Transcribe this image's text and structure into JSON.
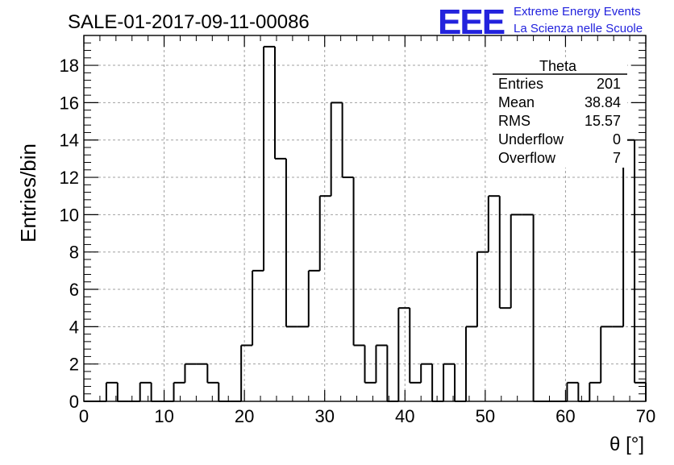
{
  "header": {
    "title": "SALE-01-2017-09-11-00086",
    "logo_text": "EEE",
    "project_line1": "Extreme Energy Events",
    "project_line2": "La Scienza nelle Scuole"
  },
  "stats_box": {
    "name": "Theta",
    "rows": [
      {
        "label": "Entries",
        "value": "201"
      },
      {
        "label": "Mean",
        "value": "38.84"
      },
      {
        "label": "RMS",
        "value": "15.57"
      },
      {
        "label": "Underflow",
        "value": "0"
      },
      {
        "label": "Overflow",
        "value": "7"
      }
    ]
  },
  "colors": {
    "logo": "#2222dd",
    "line": "#000000",
    "grid": "#a0a0a0"
  },
  "chart_data": {
    "type": "bar",
    "style": "step-histogram",
    "title": "SALE-01-2017-09-11-00086",
    "xlabel": "θ [°]",
    "ylabel": "Entries/bin",
    "xlim": [
      0,
      70
    ],
    "ylim": [
      0,
      19.6
    ],
    "grid": true,
    "bin_width": 1.4,
    "bin_edges_start": 0,
    "values": [
      0,
      0,
      1,
      0,
      0,
      1,
      0,
      0,
      1,
      2,
      2,
      1,
      0,
      0,
      3,
      7,
      19,
      13,
      4,
      4,
      7,
      11,
      16,
      12,
      3,
      1,
      3,
      0,
      5,
      1,
      2,
      0,
      2,
      0,
      4,
      8,
      11,
      5,
      10,
      10,
      0,
      0,
      0,
      1,
      0,
      1,
      4,
      4,
      14,
      1
    ],
    "x_ticks": [
      "0",
      "10",
      "20",
      "30",
      "40",
      "50",
      "60",
      "70"
    ],
    "y_ticks": [
      "0",
      "2",
      "4",
      "6",
      "8",
      "10",
      "12",
      "14",
      "16",
      "18"
    ]
  }
}
